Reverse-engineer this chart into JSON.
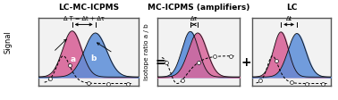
{
  "title_left": "LC-MC-ICPMS",
  "title_mid": "MC-ICPMS (amplifiers)",
  "title_right": "LC",
  "ylabel_left": "Signal",
  "ylabel_mid": "Isotope ratio a / b",
  "color_pink": "#D9659A",
  "color_blue": "#5B8DD9",
  "bg_color": "#e8e8e8",
  "operator_eq": "=",
  "operator_plus": "+",
  "label_a": "a",
  "label_b": "b",
  "dt_label_left": "Δ T = Δt + Δτ",
  "dt_label_mid": "Δτ",
  "dt_label_right": "Δt",
  "panel_bg": "#f2f2f2"
}
